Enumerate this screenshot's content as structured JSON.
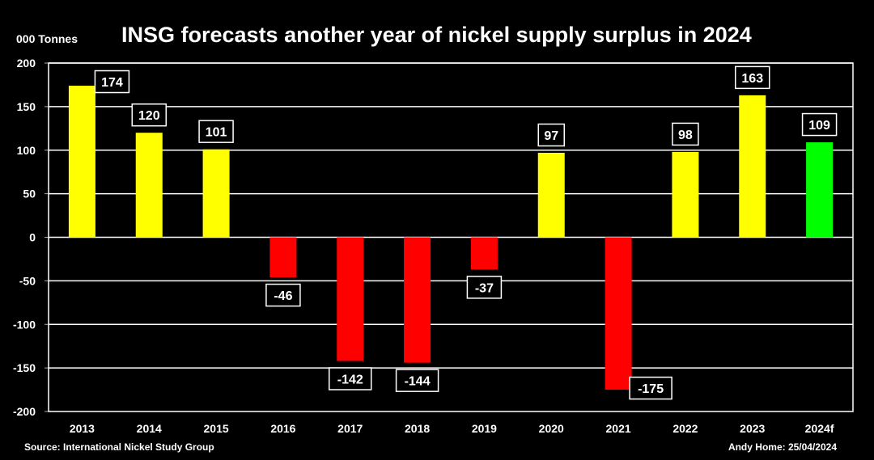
{
  "chart_data": {
    "type": "bar",
    "title": "INSG forecasts another year of nickel supply surplus in 2024",
    "ylabel": "000 Tonnes",
    "xlabel": "",
    "categories": [
      "2013",
      "2014",
      "2015",
      "2016",
      "2017",
      "2018",
      "2019",
      "2020",
      "2021",
      "2022",
      "2023",
      "2024f"
    ],
    "values": [
      174,
      120,
      101,
      -46,
      -142,
      -144,
      -37,
      97,
      -175,
      98,
      163,
      109
    ],
    "data_labels": [
      "174",
      "120",
      "101",
      "-46",
      "-142",
      "-144",
      "-37",
      "97",
      "-175",
      "98",
      "163",
      "109"
    ],
    "ylim": [
      -200,
      200
    ],
    "yticks": [
      -200,
      -150,
      -100,
      -50,
      0,
      50,
      100,
      150,
      200
    ],
    "grid": true,
    "legend": "none",
    "colors": {
      "surplus": "#ffff00",
      "deficit": "#ff0000",
      "forecast": "#00ff00",
      "background": "#000000",
      "grid": "#ffffff"
    },
    "source": "Source: International Nickel Study Group",
    "credit": "Andy Home: 25/04/2024"
  }
}
